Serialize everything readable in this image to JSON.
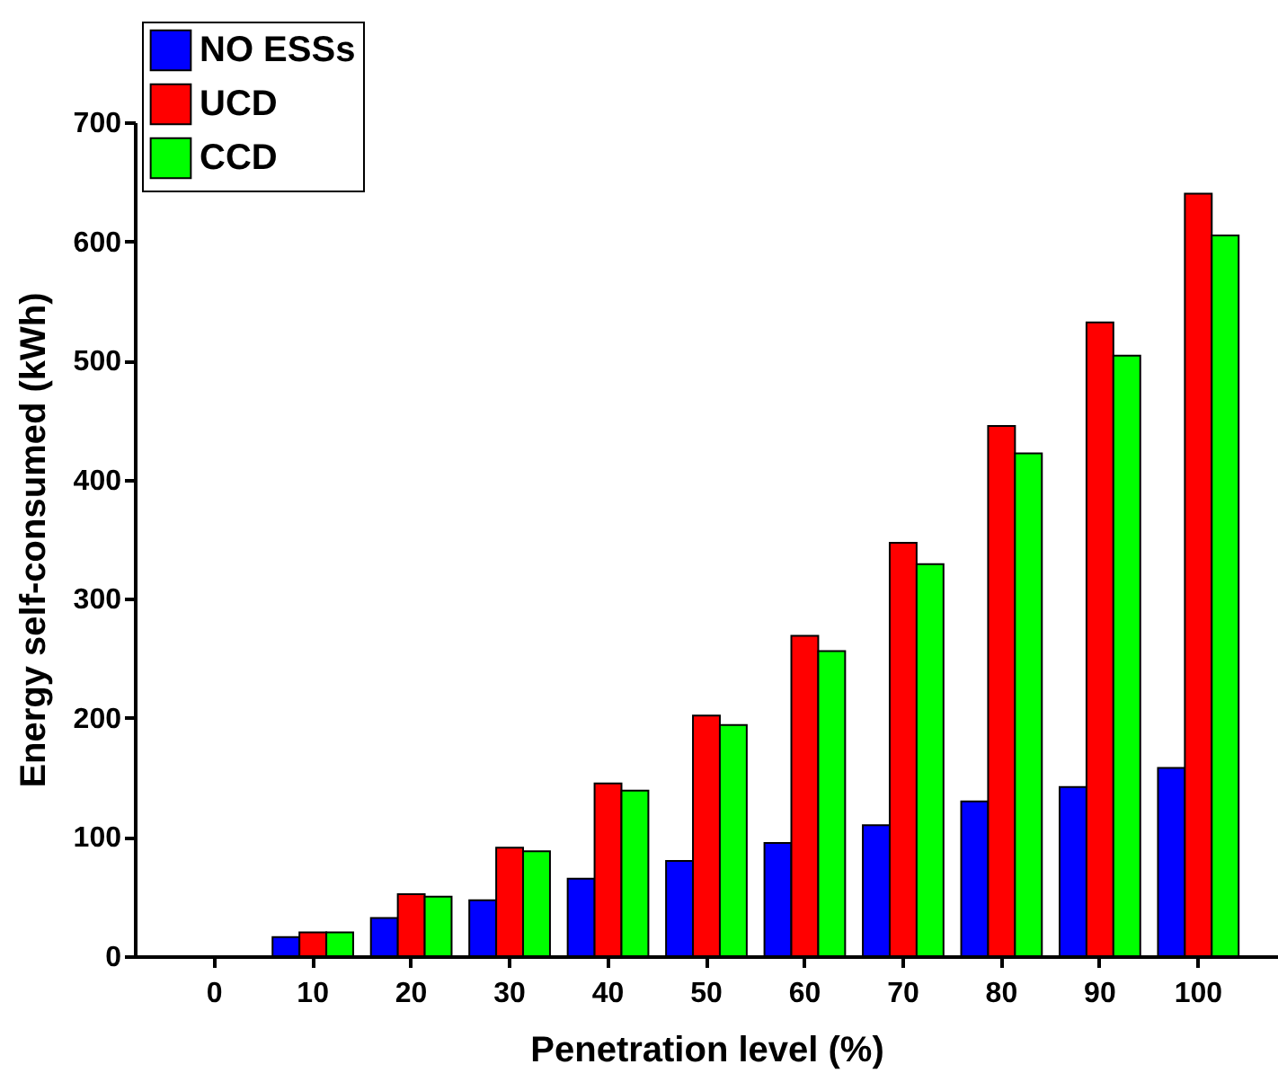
{
  "chart_data": {
    "type": "bar",
    "xlabel": "Penetration level (%)",
    "ylabel": "Energy self-consumed (kWh)",
    "categories": [
      "0",
      "10",
      "20",
      "30",
      "40",
      "50",
      "60",
      "70",
      "80",
      "90",
      "100"
    ],
    "series": [
      {
        "name": "NO ESSs",
        "color": "#0000ff",
        "values": [
          null,
          16,
          32,
          47,
          65,
          80,
          95,
          110,
          130,
          142,
          158
        ]
      },
      {
        "name": "UCD",
        "color": "#ff0000",
        "values": [
          null,
          20,
          52,
          91,
          145,
          202,
          269,
          347,
          445,
          532,
          640
        ]
      },
      {
        "name": "CCD",
        "color": "#00ff00",
        "values": [
          null,
          20,
          50,
          88,
          139,
          194,
          256,
          329,
          422,
          504,
          605
        ]
      }
    ],
    "ylim": [
      0,
      700
    ],
    "yticks": [
      0,
      100,
      200,
      300,
      400,
      500,
      600,
      700
    ],
    "grid": false,
    "legend": "top left"
  }
}
